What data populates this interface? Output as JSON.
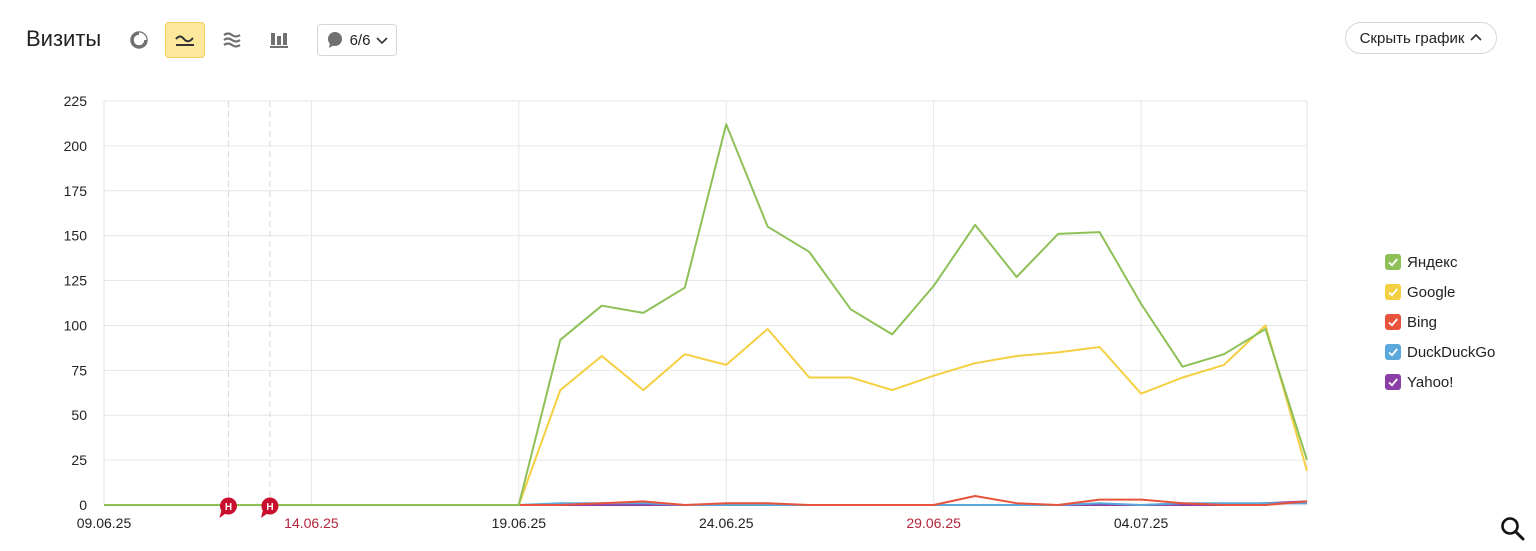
{
  "header": {
    "title": "Визиты",
    "counter_label": "6/6",
    "hide_label": "Скрыть график"
  },
  "colors": {
    "grid": "#e6e6e6",
    "axis_text": "#222222",
    "holiday_text": "#b5253a",
    "annotation": "#c8102e",
    "active_button": "#fde89c"
  },
  "icons": {
    "pie": "pie-chart-icon",
    "line": "line-chart-icon",
    "area": "area-chart-icon",
    "bar": "bar-chart-icon",
    "comment": "comment-icon",
    "chevron_down": "chevron-down-icon",
    "chevron_up": "chevron-up-icon",
    "search": "search-icon",
    "check": "check-icon"
  },
  "chart_data": {
    "type": "line",
    "title": "Визиты",
    "ylim": [
      0,
      225
    ],
    "yticks": [
      0,
      25,
      50,
      75,
      100,
      125,
      150,
      175,
      200,
      225
    ],
    "x": [
      "09.06.25",
      "10.06.25",
      "11.06.25",
      "12.06.25",
      "13.06.25",
      "14.06.25",
      "15.06.25",
      "16.06.25",
      "17.06.25",
      "18.06.25",
      "19.06.25",
      "20.06.25",
      "21.06.25",
      "22.06.25",
      "23.06.25",
      "24.06.25",
      "25.06.25",
      "26.06.25",
      "27.06.25",
      "28.06.25",
      "29.06.25",
      "30.06.25",
      "01.07.25",
      "02.07.25",
      "03.07.25",
      "04.07.25",
      "05.07.25",
      "06.07.25",
      "07.07.25",
      "08.07.25"
    ],
    "x_tick_labels": [
      {
        "label": "09.06.25",
        "index": 0,
        "holiday": false
      },
      {
        "label": "14.06.25",
        "index": 5,
        "holiday": true
      },
      {
        "label": "19.06.25",
        "index": 10,
        "holiday": false
      },
      {
        "label": "24.06.25",
        "index": 15,
        "holiday": false
      },
      {
        "label": "29.06.25",
        "index": 20,
        "holiday": true
      },
      {
        "label": "04.07.25",
        "index": 25,
        "holiday": false
      }
    ],
    "grid": true,
    "legend_position": "right",
    "annotations": [
      {
        "label": "Н",
        "x": 3
      },
      {
        "label": "Н",
        "x": 4
      }
    ],
    "series": [
      {
        "name": "Яндекс",
        "color": "#8dc057",
        "values": [
          0,
          0,
          0,
          0,
          0,
          0,
          0,
          0,
          0,
          0,
          0,
          92,
          111,
          107,
          121,
          212,
          155,
          141,
          109,
          95,
          122,
          156,
          127,
          151,
          152,
          112,
          77,
          84,
          98,
          25
        ]
      },
      {
        "name": "Google",
        "color": "#f5cf42",
        "values": [
          0,
          0,
          0,
          0,
          0,
          0,
          0,
          0,
          0,
          0,
          0,
          64,
          83,
          64,
          84,
          78,
          98,
          71,
          71,
          64,
          72,
          79,
          83,
          85,
          88,
          62,
          71,
          78,
          100,
          19
        ]
      },
      {
        "name": "Bing",
        "color": "#e8533c",
        "values": [
          0,
          0,
          0,
          0,
          0,
          0,
          0,
          0,
          0,
          0,
          0,
          0,
          1,
          2,
          0,
          1,
          1,
          0,
          0,
          0,
          0,
          5,
          1,
          0,
          3,
          3,
          1,
          0,
          0,
          2
        ]
      },
      {
        "name": "DuckDuckGo",
        "color": "#5aa8dc",
        "values": [
          0,
          0,
          0,
          0,
          0,
          0,
          0,
          0,
          0,
          0,
          0,
          1,
          1,
          1,
          0,
          0,
          0,
          0,
          0,
          0,
          0,
          0,
          0,
          0,
          1,
          0,
          1,
          1,
          1,
          1
        ]
      },
      {
        "name": "Yahoo!",
        "color": "#8a3fa8",
        "values": [
          0,
          0,
          0,
          0,
          0,
          0,
          0,
          0,
          0,
          0,
          0,
          0,
          0,
          0,
          0,
          0,
          0,
          0,
          0,
          0,
          0,
          0,
          0,
          0,
          0,
          0,
          0,
          0,
          1,
          2
        ]
      }
    ]
  }
}
